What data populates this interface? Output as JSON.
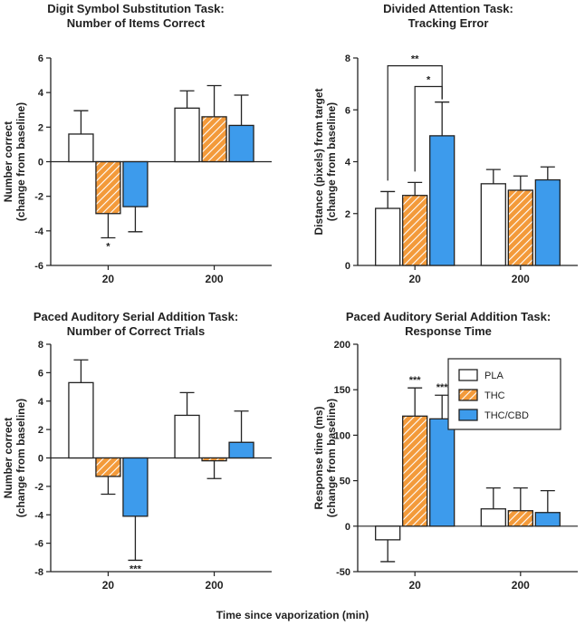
{
  "figure": {
    "x_label_common": "Time since vaporization (min)",
    "legend": {
      "placement": "top-right of Response Time panel",
      "entries": [
        {
          "label": "PLA",
          "fill": "#ffffff",
          "pattern": "none"
        },
        {
          "label": "THC",
          "fill": "#f39a3a",
          "pattern": "hatch"
        },
        {
          "label": "THC/CBD",
          "fill": "#3d9bec",
          "pattern": "none"
        }
      ]
    },
    "colors": {
      "pla": "#ffffff",
      "thc": "#f39a3a",
      "thccbd": "#3d9bec",
      "stroke": "#222222"
    }
  },
  "chart_data": [
    {
      "type": "bar",
      "title": "Digit Symbol Substitution Task:",
      "subtitle": "Number of Items Correct",
      "ylabel": "Number correct",
      "ylabel2": "(change from baseline)",
      "ylim": [
        -6,
        6
      ],
      "yticks": [
        6,
        4,
        2,
        0,
        -2,
        -4,
        -6
      ],
      "categories": [
        "20",
        "200"
      ],
      "series": [
        {
          "name": "PLA",
          "values": [
            1.6,
            3.1
          ],
          "errors": [
            1.35,
            1.0
          ]
        },
        {
          "name": "THC",
          "values": [
            -3.0,
            2.6
          ],
          "errors": [
            1.4,
            1.8
          ]
        },
        {
          "name": "THC/CBD",
          "values": [
            -2.6,
            2.1
          ],
          "errors": [
            1.45,
            1.75
          ]
        }
      ],
      "annotations": [
        {
          "text": "*",
          "category": "20",
          "series": "THC",
          "position": "below"
        }
      ]
    },
    {
      "type": "bar",
      "title": "Divided Attention Task:",
      "subtitle": "Tracking Error",
      "ylabel": "Distance (pixels) from target",
      "ylabel2": "(change from baseline)",
      "ylim": [
        0,
        8
      ],
      "yticks": [
        8,
        6,
        4,
        2,
        0
      ],
      "categories": [
        "20",
        "200"
      ],
      "series": [
        {
          "name": "PLA",
          "values": [
            2.2,
            3.15
          ],
          "errors": [
            0.65,
            0.55
          ]
        },
        {
          "name": "THC",
          "values": [
            2.7,
            2.9
          ],
          "errors": [
            0.5,
            0.55
          ]
        },
        {
          "name": "THC/CBD",
          "values": [
            5.0,
            3.3
          ],
          "errors": [
            1.3,
            0.5
          ]
        }
      ],
      "brackets": [
        {
          "text": "**",
          "from": "PLA",
          "to": "THC/CBD",
          "category": "20"
        },
        {
          "text": "*",
          "from": "THC",
          "to": "THC/CBD",
          "category": "20"
        }
      ]
    },
    {
      "type": "bar",
      "title": "Paced Auditory Serial Addition Task:",
      "subtitle": "Number of Correct Trials",
      "ylabel": "Number correct",
      "ylabel2": "(change from baseline)",
      "ylim": [
        -8,
        8
      ],
      "yticks": [
        8,
        6,
        4,
        2,
        0,
        -2,
        -4,
        -6,
        -8
      ],
      "categories": [
        "20",
        "200"
      ],
      "series": [
        {
          "name": "PLA",
          "values": [
            5.3,
            3.0
          ],
          "errors": [
            1.6,
            1.6
          ]
        },
        {
          "name": "THC",
          "values": [
            -1.3,
            -0.2
          ],
          "errors": [
            1.25,
            1.25
          ]
        },
        {
          "name": "THC/CBD",
          "values": [
            -4.1,
            1.1
          ],
          "errors": [
            3.1,
            2.2
          ]
        }
      ],
      "annotations": [
        {
          "text": "***",
          "category": "20",
          "series": "THC/CBD",
          "position": "below"
        }
      ]
    },
    {
      "type": "bar",
      "title": "Paced Auditory Serial Addition Task:",
      "subtitle": "Response Time",
      "ylabel": "Response time (ms)",
      "ylabel2": "(change from baseline)",
      "ylim": [
        -50,
        200
      ],
      "yticks": [
        200,
        150,
        100,
        50,
        0,
        -50
      ],
      "categories": [
        "20",
        "200"
      ],
      "series": [
        {
          "name": "PLA",
          "values": [
            -15,
            19
          ],
          "errors": [
            24,
            23
          ]
        },
        {
          "name": "THC",
          "values": [
            121,
            17
          ],
          "errors": [
            31,
            25
          ]
        },
        {
          "name": "THC/CBD",
          "values": [
            118,
            15
          ],
          "errors": [
            26,
            24
          ]
        }
      ],
      "annotations": [
        {
          "text": "***",
          "category": "20",
          "series": "THC",
          "position": "above"
        },
        {
          "text": "***",
          "category": "20",
          "series": "THC/CBD",
          "position": "above"
        }
      ]
    }
  ]
}
